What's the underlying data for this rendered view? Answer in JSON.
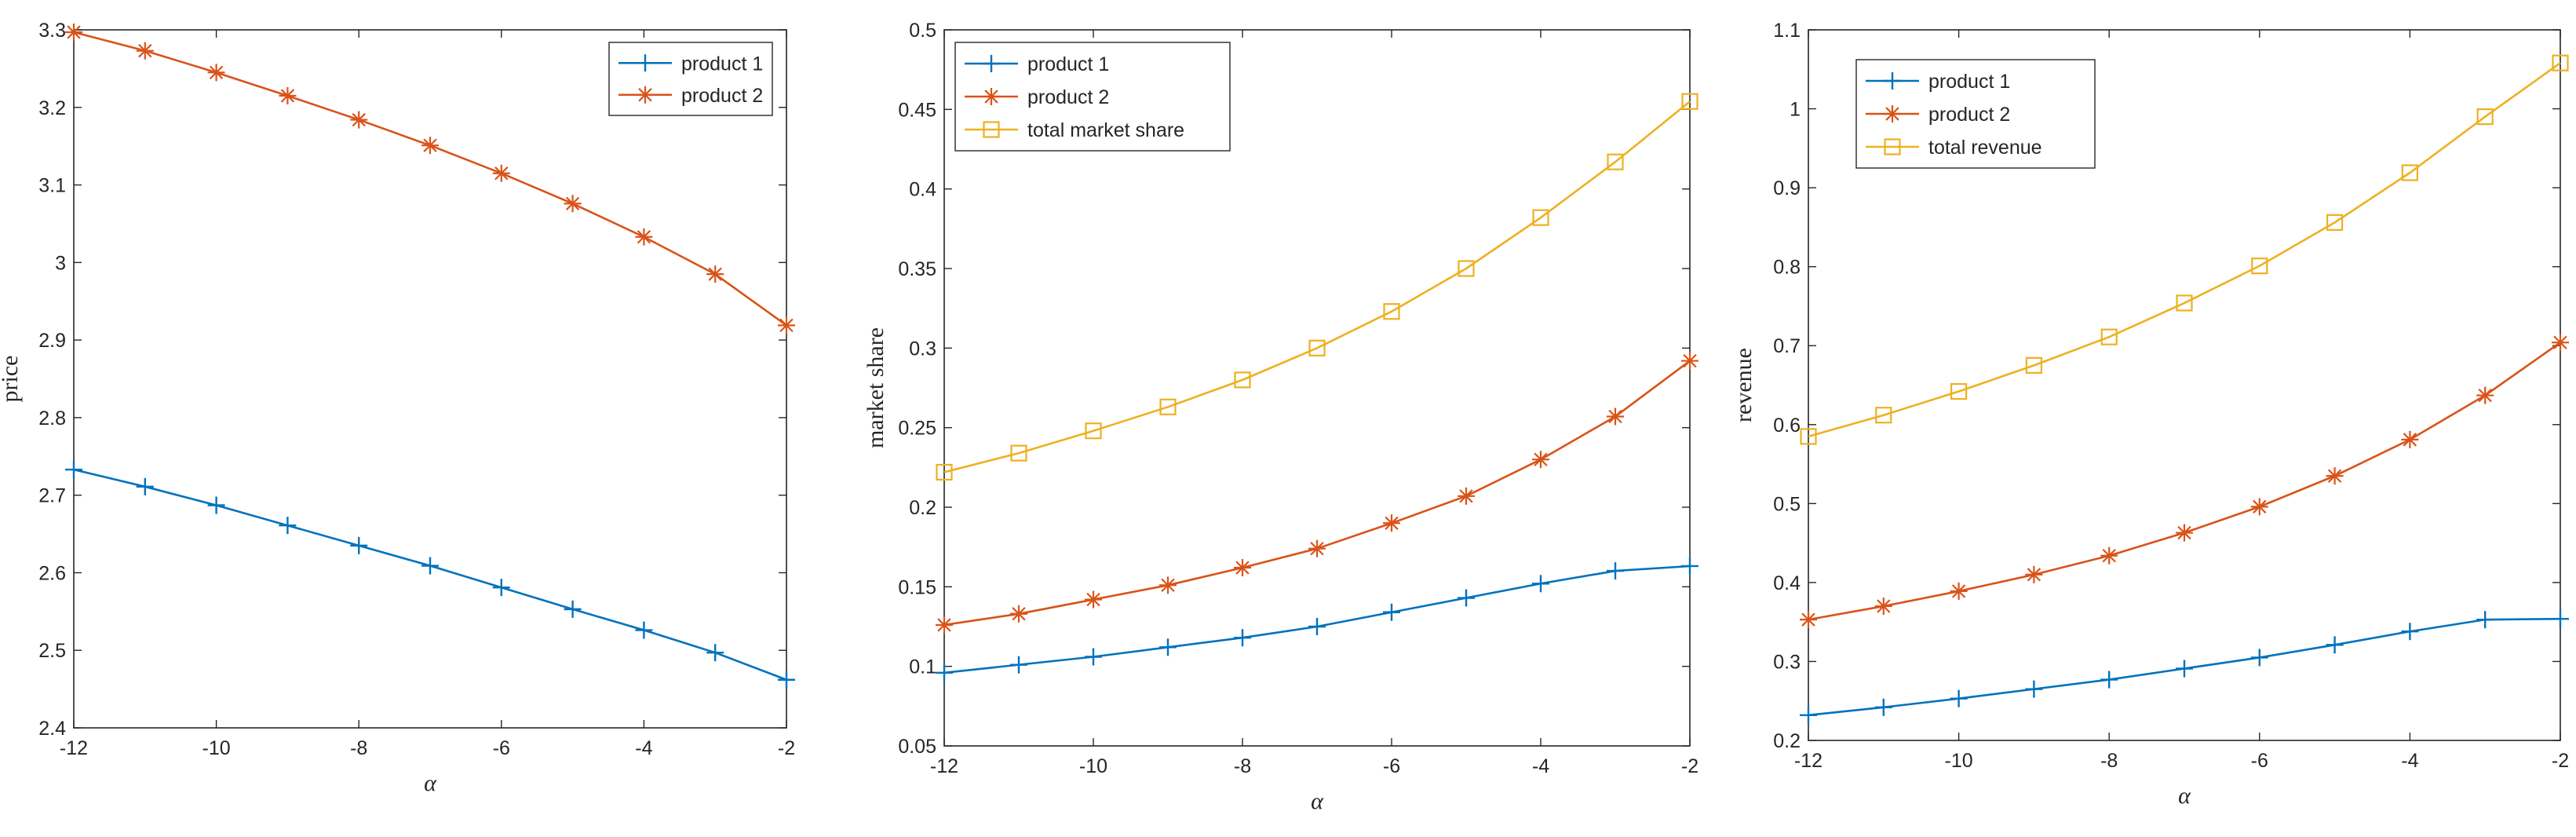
{
  "chart_data": [
    {
      "type": "line",
      "title": "",
      "xlabel": "α",
      "ylabel": "price",
      "xlim": [
        -12,
        -2
      ],
      "ylim": [
        2.4,
        3.3
      ],
      "xticks": [
        -12,
        -10,
        -8,
        -6,
        -4,
        -2
      ],
      "xtick_labels": [
        "-12",
        "-10",
        "-8",
        "-6",
        "-4",
        "-2"
      ],
      "yticks": [
        2.4,
        2.5,
        2.6,
        2.7,
        2.8,
        2.9,
        3.0,
        3.1,
        3.2,
        3.3
      ],
      "ytick_labels": [
        "2.4",
        "2.5",
        "2.6",
        "2.7",
        "2.8",
        "2.9",
        "3",
        "3.1",
        "3.2",
        "3.3"
      ],
      "legend_position": "top-right",
      "x": [
        -12,
        -11,
        -10,
        -9,
        -8,
        -7,
        -6,
        -5,
        -4,
        -3,
        -2
      ],
      "series": [
        {
          "name": "product 1",
          "color": "#0072BD",
          "marker": "plus",
          "values": [
            2.733,
            2.711,
            2.687,
            2.661,
            2.635,
            2.609,
            2.581,
            2.553,
            2.526,
            2.497,
            2.462
          ]
        },
        {
          "name": "product 2",
          "color": "#D95319",
          "marker": "star",
          "values": [
            3.297,
            3.273,
            3.245,
            3.215,
            3.184,
            3.151,
            3.115,
            3.076,
            3.033,
            2.985,
            2.919
          ]
        }
      ]
    },
    {
      "type": "line",
      "title": "",
      "xlabel": "α",
      "ylabel": "market share",
      "xlim": [
        -12,
        -2
      ],
      "ylim": [
        0.05,
        0.5
      ],
      "xticks": [
        -12,
        -10,
        -8,
        -6,
        -4,
        -2
      ],
      "xtick_labels": [
        "-12",
        "-10",
        "-8",
        "-6",
        "-4",
        "-2"
      ],
      "yticks": [
        0.05,
        0.1,
        0.15,
        0.2,
        0.25,
        0.3,
        0.35,
        0.4,
        0.45,
        0.5
      ],
      "ytick_labels": [
        "0.05",
        "0.1",
        "0.15",
        "0.2",
        "0.25",
        "0.3",
        "0.35",
        "0.4",
        "0.45",
        "0.5"
      ],
      "legend_position": "top-left",
      "x": [
        -12,
        -11,
        -10,
        -9,
        -8,
        -7,
        -6,
        -5,
        -4,
        -3,
        -2
      ],
      "series": [
        {
          "name": "product 1",
          "color": "#0072BD",
          "marker": "plus",
          "values": [
            0.096,
            0.101,
            0.106,
            0.112,
            0.118,
            0.125,
            0.134,
            0.143,
            0.152,
            0.16,
            0.163
          ]
        },
        {
          "name": "product 2",
          "color": "#D95319",
          "marker": "star",
          "values": [
            0.126,
            0.133,
            0.142,
            0.151,
            0.162,
            0.174,
            0.19,
            0.207,
            0.23,
            0.257,
            0.292
          ]
        },
        {
          "name": "total market share",
          "color": "#EDB120",
          "marker": "square",
          "values": [
            0.222,
            0.234,
            0.248,
            0.263,
            0.28,
            0.3,
            0.323,
            0.35,
            0.382,
            0.417,
            0.455
          ]
        }
      ]
    },
    {
      "type": "line",
      "title": "",
      "xlabel": "α",
      "ylabel": "revenue",
      "xlim": [
        -12,
        -2
      ],
      "ylim": [
        0.2,
        1.1
      ],
      "xticks": [
        -12,
        -10,
        -8,
        -6,
        -4,
        -2
      ],
      "xtick_labels": [
        "-12",
        "-10",
        "-8",
        "-6",
        "-4",
        "-2"
      ],
      "yticks": [
        0.2,
        0.3,
        0.4,
        0.5,
        0.6,
        0.7,
        0.8,
        0.9,
        1.0,
        1.1
      ],
      "ytick_labels": [
        "0.2",
        "0.3",
        "0.4",
        "0.5",
        "0.6",
        "0.7",
        "0.8",
        "0.9",
        "1",
        "1.1"
      ],
      "legend_position": "top-left",
      "x": [
        -12,
        -11,
        -10,
        -9,
        -8,
        -7,
        -6,
        -5,
        -4,
        -3,
        -2
      ],
      "series": [
        {
          "name": "product 1",
          "color": "#0072BD",
          "marker": "plus",
          "values": [
            0.232,
            0.242,
            0.253,
            0.265,
            0.277,
            0.291,
            0.305,
            0.321,
            0.338,
            0.353,
            0.354
          ]
        },
        {
          "name": "product 2",
          "color": "#D95319",
          "marker": "star",
          "values": [
            0.353,
            0.37,
            0.389,
            0.41,
            0.434,
            0.463,
            0.496,
            0.535,
            0.581,
            0.637,
            0.704
          ]
        },
        {
          "name": "total revenue",
          "color": "#EDB120",
          "marker": "square",
          "values": [
            0.585,
            0.612,
            0.642,
            0.675,
            0.711,
            0.754,
            0.801,
            0.856,
            0.919,
            0.99,
            1.058
          ]
        }
      ]
    }
  ]
}
